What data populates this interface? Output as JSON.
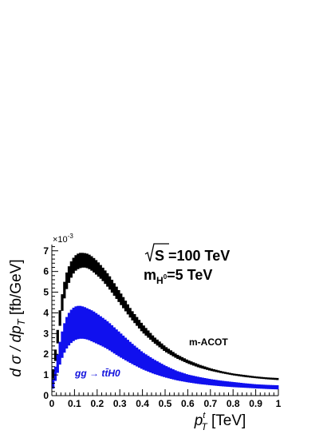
{
  "chart_data": {
    "type": "area",
    "multiplier_label": "×10",
    "multiplier_exponent": "-3",
    "xlabel": {
      "main": "p",
      "sub": "T",
      "sup": "t",
      "unit": " [TeV]"
    },
    "ylabel": {
      "prefix": "d σ / dp",
      "sub": "T",
      "unit": " [fb/GeV]"
    },
    "xlim": [
      0,
      1
    ],
    "ylim": [
      0,
      7.3
    ],
    "x_ticks": [
      "0",
      "0.1",
      "0.2",
      "0.3",
      "0.4",
      "0.5",
      "0.6",
      "0.7",
      "0.8",
      "0.9",
      "1"
    ],
    "y_ticks": [
      "0",
      "1",
      "2",
      "3",
      "4",
      "5",
      "6",
      "7"
    ],
    "annotations": {
      "energy": {
        "root": "S",
        "text": " =100 TeV"
      },
      "mass": {
        "main": "m",
        "sub": "H",
        "subsup": "0",
        "text": "=5 TeV"
      }
    },
    "colors": {
      "black_band": "#000000",
      "blue_band": "#1010ee",
      "blue_label": "#1010dd"
    },
    "series": [
      {
        "name": "m-ACOT",
        "x": [
          0.0,
          0.02,
          0.04,
          0.06,
          0.08,
          0.1,
          0.12,
          0.14,
          0.16,
          0.18,
          0.2,
          0.22,
          0.25,
          0.28,
          0.31,
          0.35,
          0.4,
          0.45,
          0.5,
          0.55,
          0.6,
          0.65,
          0.7,
          0.75,
          0.8,
          0.85,
          0.9,
          0.95,
          1.0
        ],
        "upper": [
          0.8,
          2.7,
          4.6,
          5.8,
          6.4,
          6.75,
          6.9,
          6.9,
          6.85,
          6.7,
          6.5,
          6.25,
          5.85,
          5.35,
          4.85,
          4.15,
          3.45,
          2.85,
          2.38,
          2.0,
          1.72,
          1.5,
          1.32,
          1.18,
          1.07,
          1.0,
          0.93,
          0.88,
          0.85
        ],
        "lower": [
          0.4,
          2.1,
          3.8,
          5.0,
          5.6,
          6.0,
          6.15,
          6.2,
          6.15,
          6.0,
          5.8,
          5.6,
          5.2,
          4.75,
          4.3,
          3.7,
          3.05,
          2.55,
          2.12,
          1.8,
          1.55,
          1.35,
          1.2,
          1.08,
          0.98,
          0.9,
          0.84,
          0.79,
          0.75
        ]
      },
      {
        "name": "gg → tt̄H0",
        "x": [
          0.0,
          0.02,
          0.04,
          0.06,
          0.08,
          0.1,
          0.12,
          0.14,
          0.16,
          0.18,
          0.2,
          0.22,
          0.25,
          0.28,
          0.31,
          0.35,
          0.4,
          0.45,
          0.5,
          0.55,
          0.6,
          0.65,
          0.7,
          0.75,
          0.8,
          0.85,
          0.9,
          0.95,
          1.0
        ],
        "upper": [
          0.5,
          1.7,
          2.9,
          3.7,
          4.1,
          4.3,
          4.35,
          4.3,
          4.2,
          4.1,
          3.95,
          3.8,
          3.55,
          3.25,
          2.95,
          2.55,
          2.1,
          1.75,
          1.45,
          1.2,
          1.02,
          0.9,
          0.8,
          0.72,
          0.66,
          0.6,
          0.55,
          0.52,
          0.5
        ],
        "lower": [
          0.15,
          0.9,
          1.7,
          2.2,
          2.5,
          2.68,
          2.75,
          2.75,
          2.7,
          2.6,
          2.5,
          2.4,
          2.22,
          2.0,
          1.8,
          1.55,
          1.27,
          1.05,
          0.88,
          0.74,
          0.64,
          0.56,
          0.5,
          0.45,
          0.41,
          0.38,
          0.35,
          0.32,
          0.3
        ]
      }
    ]
  }
}
